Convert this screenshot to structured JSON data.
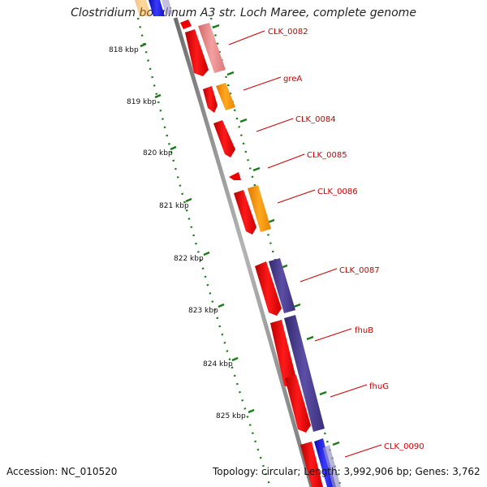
{
  "title": "Clostridium botulinum A3 str. Loch Maree, complete genome",
  "footer": {
    "accession": "Accession: NC_010520",
    "summary": "Topology: circular; Length: 3,992,906 bp; Genes: 3,762"
  },
  "ruler": {
    "ticks": [
      {
        "label": "818 kbp"
      },
      {
        "label": "819 kbp"
      },
      {
        "label": "820 kbp"
      },
      {
        "label": "821 kbp"
      },
      {
        "label": "822 kbp"
      },
      {
        "label": "823 kbp"
      },
      {
        "label": "824 kbp"
      },
      {
        "label": "825 kbp"
      }
    ]
  },
  "genes": [
    {
      "name": "CLK_0082"
    },
    {
      "name": "greA"
    },
    {
      "name": "CLK_0084"
    },
    {
      "name": "CLK_0085"
    },
    {
      "name": "CLK_0086"
    },
    {
      "name": "CLK_0087"
    },
    {
      "name": "fhuB"
    },
    {
      "name": "fhuG"
    },
    {
      "name": "CLK_0090"
    }
  ],
  "colors": {
    "cds": "#ee0000",
    "cds_pink": "#e88080",
    "orange": "#ff9900",
    "purple": "#4a3d8f",
    "blue": "#1a1ad6",
    "backbone": "#888888",
    "gc": "#1a7a1a",
    "label": "#cc0000"
  }
}
